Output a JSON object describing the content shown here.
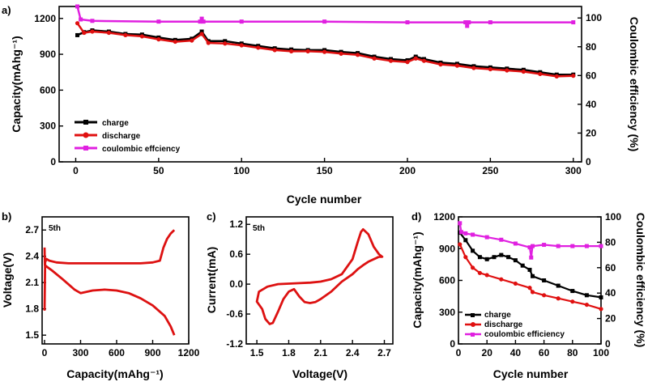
{
  "colors": {
    "charge": "#000000",
    "discharge": "#e01010",
    "coulombic": "#e020e0",
    "cv": "#dd1111",
    "vc": "#dd1111",
    "axis": "#000000"
  },
  "chart_data": [
    {
      "panel": "a)",
      "type": "line",
      "xlabel": "Cycle number",
      "ylabel": "Capacity(mAhg⁻¹)",
      "y2label": "Coulombic efficiency (%)",
      "xlim": [
        -10,
        305
      ],
      "ylim": [
        0,
        1300
      ],
      "y2lim": [
        0,
        108
      ],
      "xticks": [
        0,
        50,
        100,
        150,
        200,
        250,
        300
      ],
      "yticks": [
        0,
        300,
        600,
        900,
        1200
      ],
      "y2ticks": [
        0,
        20,
        40,
        60,
        80,
        100
      ],
      "legend_position": "bottom-left",
      "series": [
        {
          "name": "charge",
          "axis": "left",
          "marker": "square",
          "x": [
            1,
            5,
            10,
            20,
            30,
            40,
            50,
            60,
            70,
            76,
            80,
            90,
            100,
            110,
            120,
            130,
            140,
            150,
            160,
            170,
            180,
            190,
            200,
            205,
            210,
            220,
            230,
            240,
            250,
            260,
            270,
            280,
            290,
            300
          ],
          "y": [
            1060,
            1085,
            1100,
            1090,
            1070,
            1065,
            1040,
            1020,
            1030,
            1090,
            1010,
            1010,
            990,
            970,
            950,
            940,
            935,
            935,
            920,
            910,
            880,
            860,
            850,
            880,
            860,
            830,
            820,
            800,
            790,
            780,
            770,
            750,
            730,
            730
          ]
        },
        {
          "name": "discharge",
          "axis": "left",
          "marker": "circle",
          "x": [
            1,
            5,
            10,
            20,
            30,
            40,
            50,
            60,
            70,
            76,
            80,
            90,
            100,
            110,
            120,
            130,
            140,
            150,
            160,
            170,
            180,
            190,
            200,
            205,
            210,
            220,
            230,
            240,
            250,
            260,
            270,
            280,
            290,
            300
          ],
          "y": [
            1160,
            1080,
            1090,
            1080,
            1060,
            1050,
            1025,
            1005,
            1015,
            1070,
            995,
            990,
            975,
            955,
            935,
            925,
            925,
            920,
            905,
            895,
            865,
            845,
            835,
            865,
            845,
            815,
            805,
            785,
            775,
            765,
            755,
            735,
            715,
            720
          ]
        },
        {
          "name": "coulombic effciency",
          "axis": "right",
          "marker": "square",
          "x": [
            1,
            3,
            10,
            50,
            75,
            76,
            77,
            100,
            150,
            200,
            235,
            236,
            237,
            250,
            300
          ],
          "y": [
            108,
            99,
            98,
            97.5,
            97.5,
            99.5,
            97.5,
            97.5,
            97.5,
            97,
            97,
            94.5,
            97,
            97,
            97
          ]
        }
      ]
    },
    {
      "panel": "b)",
      "type": "line",
      "annotation": "5th",
      "xlabel": "Capacity(mAhg⁻¹)",
      "ylabel": "Voltage(V)",
      "xlim": [
        -20,
        1200
      ],
      "ylim": [
        1.4,
        2.85
      ],
      "xticks": [
        0,
        300,
        600,
        900,
        1200
      ],
      "yticks": [
        1.5,
        1.8,
        2.1,
        2.4,
        2.7
      ],
      "series": [
        {
          "name": "discharge",
          "x": [
            0,
            3,
            20,
            60,
            150,
            250,
            300,
            400,
            500,
            600,
            700,
            800,
            900,
            1000,
            1050,
            1080
          ],
          "y": [
            2.5,
            2.3,
            2.28,
            2.24,
            2.14,
            2.02,
            1.98,
            2.01,
            2.02,
            2.01,
            1.98,
            1.92,
            1.84,
            1.72,
            1.6,
            1.5
          ]
        },
        {
          "name": "charge",
          "x": [
            0,
            5,
            15,
            40,
            100,
            200,
            400,
            600,
            800,
            900,
            960,
            990,
            1020,
            1050,
            1080
          ],
          "y": [
            1.78,
            2.33,
            2.37,
            2.35,
            2.33,
            2.32,
            2.32,
            2.32,
            2.32,
            2.33,
            2.35,
            2.5,
            2.6,
            2.66,
            2.7
          ]
        }
      ]
    },
    {
      "panel": "c)",
      "type": "line",
      "annotation": "5th",
      "xlabel": "Voltage(V)",
      "ylabel": "Current(mA)",
      "xlim": [
        1.4,
        2.78
      ],
      "ylim": [
        -1.2,
        1.35
      ],
      "xticks": [
        1.5,
        1.8,
        2.1,
        2.4,
        2.7
      ],
      "yticks": [
        -1.2,
        -0.6,
        0.0,
        0.6,
        1.2
      ],
      "series": [
        {
          "name": "cv",
          "x": [
            2.65,
            2.55,
            2.5,
            2.45,
            2.4,
            2.3,
            2.2,
            2.1,
            2.05,
            2.0,
            1.95,
            1.9,
            1.85,
            1.8,
            1.75,
            1.7,
            1.65,
            1.62,
            1.58,
            1.55,
            1.5,
            1.52,
            1.6,
            1.7,
            1.8,
            1.9,
            2.0,
            2.1,
            2.2,
            2.3,
            2.4,
            2.45,
            2.48,
            2.5,
            2.55,
            2.6,
            2.65,
            2.68,
            2.65
          ],
          "y": [
            0.55,
            0.45,
            0.38,
            0.3,
            0.2,
            0.05,
            -0.15,
            -0.3,
            -0.36,
            -0.38,
            -0.36,
            -0.25,
            -0.1,
            -0.15,
            -0.3,
            -0.55,
            -0.78,
            -0.8,
            -0.7,
            -0.5,
            -0.35,
            -0.15,
            -0.05,
            0.0,
            0.01,
            0.02,
            0.03,
            0.05,
            0.1,
            0.2,
            0.5,
            0.85,
            1.05,
            1.1,
            1.0,
            0.75,
            0.6,
            0.55,
            0.55
          ]
        }
      ]
    },
    {
      "panel": "d)",
      "type": "line",
      "xlabel": "Cycle number",
      "ylabel": "Capacity(mAhg⁻¹)",
      "y2label": "Coulombic efficiency (%)",
      "xlim": [
        0,
        100
      ],
      "ylim": [
        0,
        1200
      ],
      "y2lim": [
        0,
        100
      ],
      "xticks": [
        0,
        20,
        40,
        60,
        80,
        100
      ],
      "yticks": [
        0,
        300,
        600,
        900,
        1200
      ],
      "y2ticks": [
        0,
        20,
        40,
        60,
        80,
        100
      ],
      "legend_position": "bottom-left",
      "series": [
        {
          "name": "charge",
          "axis": "left",
          "marker": "square",
          "x": [
            1,
            5,
            10,
            15,
            20,
            25,
            30,
            35,
            40,
            45,
            50,
            52,
            60,
            70,
            80,
            90,
            100
          ],
          "y": [
            1050,
            980,
            880,
            820,
            800,
            820,
            840,
            820,
            790,
            740,
            700,
            640,
            600,
            550,
            500,
            460,
            440
          ]
        },
        {
          "name": "discharge",
          "axis": "left",
          "marker": "circle",
          "x": [
            1,
            5,
            10,
            15,
            20,
            30,
            40,
            50,
            52,
            60,
            70,
            80,
            90,
            100
          ],
          "y": [
            940,
            820,
            720,
            670,
            650,
            610,
            570,
            530,
            490,
            460,
            430,
            400,
            370,
            330
          ]
        },
        {
          "name": "coulombic efficiency",
          "axis": "right",
          "marker": "square",
          "x": [
            1,
            2,
            5,
            10,
            20,
            30,
            40,
            50,
            51,
            52,
            60,
            70,
            80,
            90,
            100
          ],
          "y": [
            95,
            88,
            87,
            86,
            84,
            82,
            79,
            76,
            68,
            77,
            78,
            77,
            77,
            77,
            77
          ]
        }
      ]
    }
  ]
}
